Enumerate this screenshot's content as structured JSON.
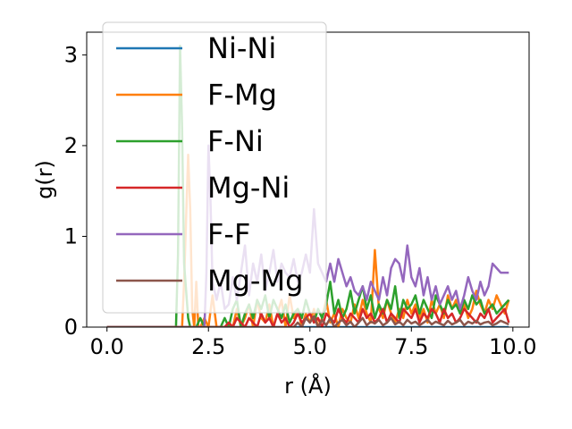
{
  "chart_data": {
    "type": "line",
    "title": "",
    "xlabel": "r (Å)",
    "ylabel": "g(r)",
    "xlim": [
      -0.5,
      10.4
    ],
    "ylim": [
      0,
      3.25
    ],
    "xticks": [
      0.0,
      2.5,
      5.0,
      7.5,
      10.0
    ],
    "xtick_labels": [
      "0.0",
      "2.5",
      "5.0",
      "7.5",
      "10.0"
    ],
    "yticks": [
      0,
      1,
      2,
      3
    ],
    "ytick_labels": [
      "0",
      "1",
      "2",
      "3"
    ],
    "grid": false,
    "legend_position": "upper left",
    "series": [
      {
        "name": "Ni-Ni",
        "color": "#1f77b4",
        "x": [
          0,
          9.9
        ],
        "y": [
          0,
          0
        ]
      },
      {
        "name": "F-Mg",
        "color": "#ff7f0e",
        "x": [
          0,
          1.85,
          1.9,
          1.95,
          2.0,
          2.05,
          2.1,
          2.15,
          2.2,
          2.25,
          2.3,
          2.4,
          2.5,
          2.6,
          2.7,
          2.8,
          2.9,
          3.0,
          3.1,
          3.2,
          3.3,
          3.4,
          3.5,
          3.6,
          3.7,
          3.8,
          3.9,
          4.0,
          4.1,
          4.2,
          4.3,
          4.4,
          4.5,
          4.6,
          4.7,
          4.8,
          4.9,
          5.0,
          5.1,
          5.2,
          5.3,
          5.4,
          5.5,
          5.6,
          5.7,
          5.8,
          5.9,
          6.0,
          6.1,
          6.2,
          6.3,
          6.4,
          6.5,
          6.6,
          6.7,
          6.8,
          6.9,
          7.0,
          7.1,
          7.2,
          7.3,
          7.4,
          7.5,
          7.6,
          7.7,
          7.8,
          7.9,
          8.0,
          8.1,
          8.2,
          8.3,
          8.4,
          8.5,
          8.6,
          8.7,
          8.8,
          8.9,
          9.0,
          9.1,
          9.2,
          9.3,
          9.4,
          9.5,
          9.6,
          9.7,
          9.8,
          9.9
        ],
        "y": [
          0,
          0,
          0.5,
          1.2,
          1.9,
          1.3,
          0.2,
          0,
          0.5,
          0,
          0,
          0.1,
          0,
          0.35,
          0,
          0,
          0,
          0.05,
          0,
          0.2,
          0,
          0.1,
          0.25,
          0,
          0.3,
          0.1,
          0.05,
          0.25,
          0,
          0.15,
          0.3,
          0,
          0.35,
          0.1,
          0.2,
          0,
          0.15,
          0.05,
          0.2,
          0,
          0.1,
          0.3,
          0.05,
          0.15,
          0,
          0.2,
          0.1,
          0.05,
          0.25,
          0.1,
          0.3,
          0.15,
          0.05,
          0.85,
          0.2,
          0.1,
          0.3,
          0.15,
          0.05,
          0.2,
          0.1,
          0.3,
          0.15,
          0.25,
          0.1,
          0.2,
          0.05,
          0.3,
          0.15,
          0.25,
          0.1,
          0.35,
          0.2,
          0.3,
          0.15,
          0.25,
          0.1,
          0.2,
          0.4,
          0.25,
          0.15,
          0.3,
          0.2,
          0.35,
          0.25,
          0.15,
          0.3
        ]
      },
      {
        "name": "F-Ni",
        "color": "#2ca02c",
        "x": [
          0,
          1.7,
          1.75,
          1.8,
          1.85,
          1.9,
          1.95,
          2.0,
          2.05,
          2.1,
          2.2,
          2.3,
          2.4,
          2.5,
          2.6,
          2.7,
          2.8,
          2.9,
          3.0,
          3.1,
          3.2,
          3.3,
          3.4,
          3.5,
          3.6,
          3.7,
          3.8,
          3.9,
          4.0,
          4.1,
          4.2,
          4.3,
          4.4,
          4.5,
          4.6,
          4.7,
          4.8,
          4.9,
          5.0,
          5.1,
          5.2,
          5.3,
          5.4,
          5.5,
          5.6,
          5.7,
          5.8,
          5.9,
          6.0,
          6.1,
          6.2,
          6.3,
          6.4,
          6.5,
          6.6,
          6.7,
          6.8,
          6.9,
          7.0,
          7.1,
          7.2,
          7.3,
          7.4,
          7.5,
          7.6,
          7.7,
          7.8,
          7.9,
          8.0,
          8.1,
          8.2,
          8.3,
          8.4,
          8.5,
          8.6,
          8.7,
          8.8,
          8.9,
          9.0,
          9.1,
          9.2,
          9.3,
          9.4,
          9.5,
          9.6,
          9.7,
          9.8,
          9.9
        ],
        "y": [
          0,
          0,
          0.8,
          3.1,
          2.2,
          0.7,
          0.4,
          0.1,
          0,
          0,
          0,
          0.1,
          0,
          0,
          0,
          0,
          0,
          0.1,
          0,
          0.2,
          0.3,
          0,
          0.15,
          0.25,
          0.1,
          0.3,
          0.2,
          0.35,
          0.1,
          0.3,
          0.2,
          0.1,
          0.25,
          0.05,
          0.15,
          0.2,
          0.1,
          0.3,
          0.15,
          0.05,
          0.2,
          0.1,
          0.25,
          0.5,
          0.15,
          0.3,
          0.1,
          0.2,
          0.4,
          0.15,
          0.3,
          0.45,
          0.2,
          0.35,
          0.1,
          0.25,
          0.15,
          0.3,
          0.2,
          0.45,
          0.1,
          0.3,
          0.2,
          0.25,
          0.35,
          0.15,
          0.3,
          0.2,
          0.1,
          0.35,
          0.25,
          0.15,
          0.3,
          0.2,
          0.25,
          0.15,
          0.3,
          0.2,
          0.35,
          0.25,
          0.3,
          0.15,
          0.2,
          0.25,
          0.15,
          0.2,
          0.25,
          0.3
        ]
      },
      {
        "name": "Mg-Ni",
        "color": "#d62728",
        "x": [
          0,
          2.9,
          3.0,
          3.1,
          3.2,
          3.3,
          3.4,
          3.5,
          3.6,
          3.7,
          3.8,
          3.9,
          4.0,
          4.1,
          4.2,
          4.3,
          4.4,
          4.5,
          4.6,
          4.7,
          4.8,
          4.9,
          5.0,
          5.1,
          5.2,
          5.3,
          5.4,
          5.5,
          5.6,
          5.7,
          5.8,
          5.9,
          6.0,
          6.1,
          6.2,
          6.3,
          6.4,
          6.5,
          6.6,
          6.7,
          6.8,
          6.9,
          7.0,
          7.1,
          7.2,
          7.3,
          7.4,
          7.5,
          7.6,
          7.7,
          7.8,
          7.9,
          8.0,
          8.1,
          8.2,
          8.3,
          8.4,
          8.5,
          8.6,
          8.7,
          8.8,
          8.9,
          9.0,
          9.1,
          9.2,
          9.3,
          9.4,
          9.5,
          9.6,
          9.7,
          9.8,
          9.9
        ],
        "y": [
          0,
          0,
          0.05,
          0,
          0.1,
          0.05,
          0,
          0.1,
          0.05,
          0,
          0.15,
          0.05,
          0.1,
          0,
          0.15,
          0.05,
          0.1,
          0,
          0.05,
          0.15,
          0.05,
          0.1,
          0.15,
          0.05,
          0.1,
          0,
          0.15,
          0.1,
          0.05,
          0.2,
          0.1,
          0.05,
          0.15,
          0.1,
          0.05,
          0.2,
          0.1,
          0.15,
          0.05,
          0.1,
          0.2,
          0.05,
          0.15,
          0.1,
          0.05,
          0.2,
          0.15,
          0.1,
          0.2,
          0.05,
          0.15,
          0.1,
          0.2,
          0.15,
          0.05,
          0.2,
          0.1,
          0.15,
          0.05,
          0.1,
          0.2,
          0.15,
          0.1,
          0.05,
          0.15,
          0.1,
          0.2,
          0.05,
          0.1,
          0.15,
          0.2,
          0.05
        ]
      },
      {
        "name": "F-F",
        "color": "#9467bd",
        "x": [
          0,
          2.4,
          2.45,
          2.5,
          2.55,
          2.6,
          2.7,
          2.8,
          2.9,
          3.0,
          3.1,
          3.2,
          3.3,
          3.4,
          3.5,
          3.6,
          3.7,
          3.8,
          3.9,
          4.0,
          4.1,
          4.2,
          4.3,
          4.4,
          4.5,
          4.6,
          4.7,
          4.8,
          4.9,
          5.0,
          5.1,
          5.2,
          5.3,
          5.4,
          5.5,
          5.6,
          5.7,
          5.8,
          5.9,
          6.0,
          6.1,
          6.2,
          6.3,
          6.4,
          6.5,
          6.6,
          6.7,
          6.8,
          6.9,
          7.0,
          7.1,
          7.2,
          7.3,
          7.4,
          7.5,
          7.6,
          7.7,
          7.8,
          7.9,
          8.0,
          8.1,
          8.2,
          8.3,
          8.4,
          8.5,
          8.6,
          8.7,
          8.8,
          8.9,
          9.0,
          9.1,
          9.2,
          9.3,
          9.4,
          9.5,
          9.6,
          9.7,
          9.8,
          9.9
        ],
        "y": [
          0,
          0,
          0.6,
          2.0,
          1.4,
          0.5,
          0.3,
          0.5,
          0.2,
          0.25,
          0.55,
          0.3,
          0.6,
          0.9,
          0.35,
          0.7,
          0.5,
          0.8,
          0.4,
          0.6,
          0.85,
          0.5,
          0.7,
          0.6,
          0.55,
          0.75,
          0.5,
          0.6,
          0.8,
          0.6,
          1.3,
          0.7,
          0.6,
          0.5,
          0.7,
          0.5,
          0.75,
          0.6,
          0.45,
          0.55,
          0.4,
          0.35,
          0.45,
          0.3,
          0.5,
          0.4,
          0.3,
          0.55,
          0.35,
          0.65,
          0.75,
          0.7,
          0.5,
          0.9,
          0.55,
          0.45,
          0.65,
          0.35,
          0.55,
          0.3,
          0.45,
          0.25,
          0.35,
          0.45,
          0.3,
          0.4,
          0.2,
          0.35,
          0.55,
          0.4,
          0.3,
          0.5,
          0.35,
          0.45,
          0.7,
          0.65,
          0.6,
          0.6,
          0.6
        ]
      },
      {
        "name": "Mg-Mg",
        "color": "#8c564b",
        "x": [
          0,
          4.6,
          4.7,
          4.8,
          4.9,
          5.0,
          5.1,
          5.2,
          5.3,
          5.4,
          5.5,
          5.6,
          5.7,
          5.8,
          5.9,
          6.0,
          6.1,
          6.2,
          6.3,
          6.4,
          6.5,
          6.6,
          6.7,
          6.8,
          6.9,
          7.0,
          7.1,
          7.2,
          7.3,
          7.4,
          7.5,
          7.6,
          7.7,
          7.8,
          7.9,
          8.0,
          8.1,
          8.2,
          8.3,
          8.4,
          8.5,
          8.6,
          8.7,
          8.8,
          8.9,
          9.0,
          9.1,
          9.2,
          9.3,
          9.4,
          9.5,
          9.6,
          9.7,
          9.8,
          9.9
        ],
        "y": [
          0,
          0,
          0.05,
          0,
          0.1,
          0.05,
          0.12,
          0,
          0.08,
          0.02,
          0.1,
          0,
          0.05,
          0.08,
          0.02,
          0.06,
          0,
          0.05,
          0.1,
          0.02,
          0.06,
          0.04,
          0.08,
          0.02,
          0.05,
          0.1,
          0.03,
          0.06,
          0.02,
          0.08,
          0.04,
          0.06,
          0.02,
          0.05,
          0.08,
          0.03,
          0.06,
          0.04,
          0.02,
          0.07,
          0.03,
          0.05,
          0.08,
          0.02,
          0.06,
          0.04,
          0.07,
          0.03,
          0.05,
          0.06,
          0.02,
          0.04,
          0.07,
          0.05,
          0.03
        ]
      }
    ]
  }
}
